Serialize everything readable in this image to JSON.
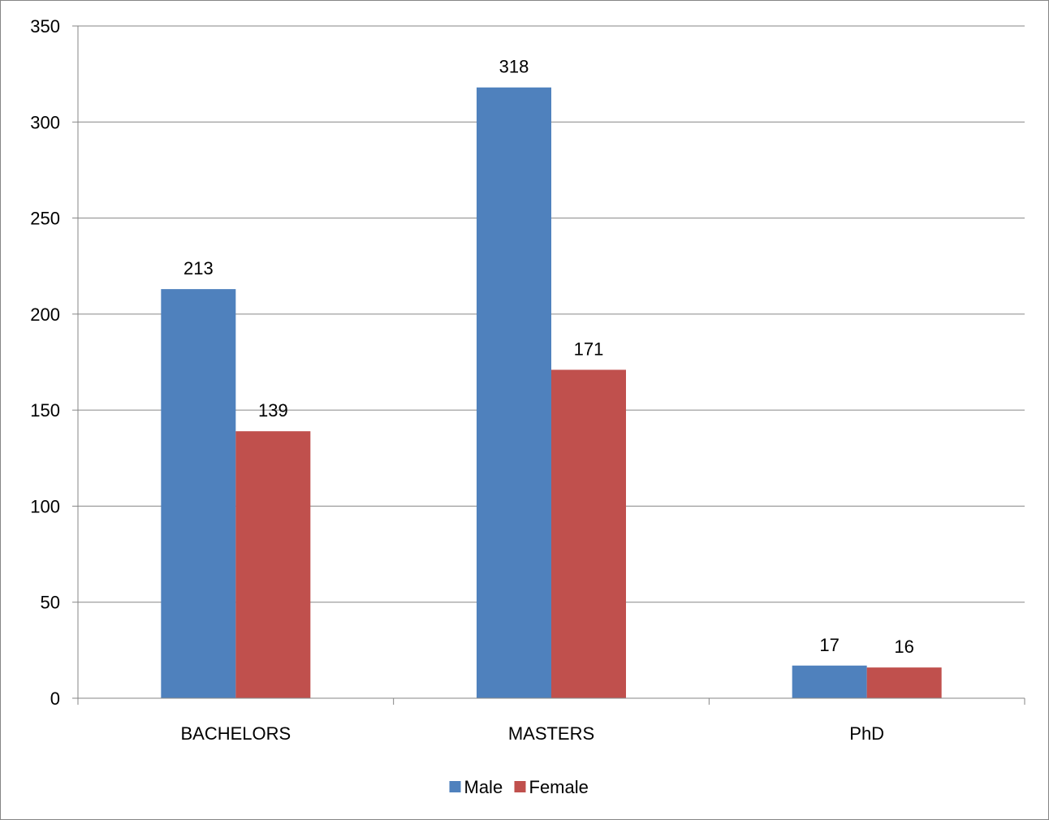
{
  "chart_data": {
    "type": "bar",
    "categories": [
      "BACHELORS",
      "MASTERS",
      "PhD"
    ],
    "series": [
      {
        "name": "Male",
        "color": "#4F81BD",
        "values": [
          213,
          318,
          17
        ]
      },
      {
        "name": "Female",
        "color": "#C0504D",
        "values": [
          139,
          171,
          16
        ]
      }
    ],
    "ylim": [
      0,
      350
    ],
    "yticks": [
      0,
      50,
      100,
      150,
      200,
      250,
      300,
      350
    ],
    "grid": true,
    "legend_position": "bottom",
    "data_labels": true
  }
}
